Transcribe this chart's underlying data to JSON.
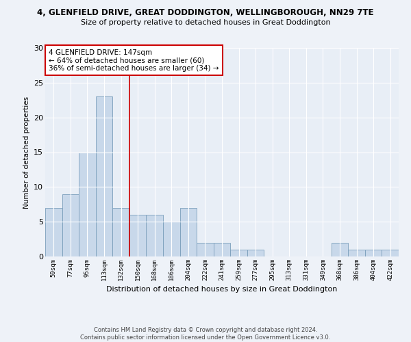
{
  "title": "4, GLENFIELD DRIVE, GREAT DODDINGTON, WELLINGBOROUGH, NN29 7TE",
  "subtitle": "Size of property relative to detached houses in Great Doddington",
  "xlabel": "Distribution of detached houses by size in Great Doddington",
  "ylabel": "Number of detached properties",
  "bar_color": "#c8d8ea",
  "bar_edge_color": "#7a9ebb",
  "vline_color": "#cc0000",
  "vline_x": 4.5,
  "categories": [
    "59sqm",
    "77sqm",
    "95sqm",
    "113sqm",
    "132sqm",
    "150sqm",
    "168sqm",
    "186sqm",
    "204sqm",
    "222sqm",
    "241sqm",
    "259sqm",
    "277sqm",
    "295sqm",
    "313sqm",
    "331sqm",
    "349sqm",
    "368sqm",
    "386sqm",
    "404sqm",
    "422sqm"
  ],
  "values": [
    7,
    9,
    15,
    23,
    7,
    6,
    6,
    5,
    7,
    2,
    2,
    1,
    1,
    0,
    0,
    0,
    0,
    2,
    1,
    1,
    1
  ],
  "ylim": [
    0,
    30
  ],
  "yticks": [
    0,
    5,
    10,
    15,
    20,
    25,
    30
  ],
  "annotation_text": "4 GLENFIELD DRIVE: 147sqm\n← 64% of detached houses are smaller (60)\n36% of semi-detached houses are larger (34) →",
  "footer_line1": "Contains HM Land Registry data © Crown copyright and database right 2024.",
  "footer_line2": "Contains public sector information licensed under the Open Government Licence v3.0.",
  "bg_color": "#eef2f8",
  "plot_bg_color": "#e8eef6"
}
